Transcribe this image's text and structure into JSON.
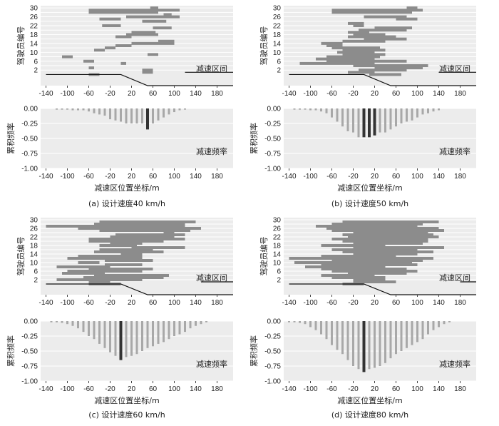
{
  "figure_labels": {
    "upper_ylabel": "驾驶员编号",
    "lower_ylabel": "累积频率",
    "lower_xlabel": "减速区位置坐标/m",
    "upper_annotation": "减速区间",
    "lower_annotation": "减速频率"
  },
  "colors": {
    "bar": "#8c8c8c",
    "freq_bar": "#a8a8a8",
    "highlight": "#333333",
    "panel_bg": "#ececec"
  },
  "chart_data": [
    {
      "id": "a",
      "caption": "(a) 设计速度40 km/h",
      "type": "bar",
      "intervals": [
        {
          "driver": 29,
          "start": -60,
          "end": 110
        },
        {
          "driver": 30,
          "start": 55,
          "end": 70
        },
        {
          "driver": 28,
          "start": -60,
          "end": 70
        },
        {
          "driver": 27,
          "start": 80,
          "end": 95
        },
        {
          "driver": 26,
          "start": 10,
          "end": 110
        },
        {
          "driver": 25,
          "start": -40,
          "end": 0
        },
        {
          "driver": 24,
          "start": 40,
          "end": 85
        },
        {
          "driver": 22,
          "start": -35,
          "end": 0
        },
        {
          "driver": 21,
          "start": 60,
          "end": 95
        },
        {
          "driver": 19,
          "start": 20,
          "end": 65
        },
        {
          "driver": 18,
          "start": 10,
          "end": 70
        },
        {
          "driver": 17,
          "start": -10,
          "end": 20
        },
        {
          "driver": 15,
          "start": 70,
          "end": 100
        },
        {
          "driver": 14,
          "start": 20,
          "end": 100
        },
        {
          "driver": 13,
          "start": -10,
          "end": 20
        },
        {
          "driver": 12,
          "start": -30,
          "end": -10
        },
        {
          "driver": 11,
          "start": -50,
          "end": -30
        },
        {
          "driver": 9,
          "start": 50,
          "end": 70
        },
        {
          "driver": 8,
          "start": -110,
          "end": -90
        },
        {
          "driver": 6,
          "start": -70,
          "end": -50
        },
        {
          "driver": 5,
          "start": 0,
          "end": 10
        },
        {
          "driver": 3,
          "start": -60,
          "end": -50
        },
        {
          "driver": 2,
          "start": 40,
          "end": 60
        },
        {
          "driver": 1,
          "start": 40,
          "end": 60
        },
        {
          "driver": 0,
          "start": -60,
          "end": -40
        }
      ],
      "road_profile": [
        [
          -140,
          0
        ],
        [
          0,
          0
        ],
        [
          50,
          -5
        ],
        [
          210,
          -5
        ]
      ],
      "road_step": {
        "x": [
          120,
          210
        ],
        "y": 1
      },
      "freq_x": [
        -120,
        -110,
        -100,
        -90,
        -80,
        -70,
        -60,
        -50,
        -40,
        -30,
        -20,
        -10,
        0,
        10,
        20,
        30,
        40,
        50,
        60,
        70,
        80,
        90,
        100,
        110,
        120
      ],
      "freq_values": [
        -0.02,
        -0.02,
        -0.02,
        -0.03,
        -0.03,
        -0.03,
        -0.05,
        -0.08,
        -0.1,
        -0.12,
        -0.18,
        -0.2,
        -0.22,
        -0.25,
        -0.25,
        -0.25,
        -0.25,
        -0.35,
        -0.25,
        -0.2,
        -0.15,
        -0.1,
        -0.06,
        -0.03,
        -0.02
      ],
      "highlight_x": 50,
      "x_ticks": [
        -140,
        -100,
        -60,
        -20,
        20,
        60,
        100,
        140,
        180
      ],
      "y_ticks_top": [
        2,
        6,
        10,
        14,
        18,
        22,
        26,
        30
      ],
      "y_ticks_bottom": [
        "0.00",
        "-0.25",
        "-0.50",
        "-0.75",
        "-1.00"
      ],
      "xlim": [
        -150,
        210
      ],
      "ylim_top": [
        -5,
        31
      ],
      "ylim_bottom": [
        -1,
        0
      ]
    },
    {
      "id": "b",
      "caption": "(b) 设计速度50 km/h",
      "type": "bar",
      "intervals": [
        {
          "driver": 30,
          "start": 80,
          "end": 100
        },
        {
          "driver": 29,
          "start": -60,
          "end": 110
        },
        {
          "driver": 28,
          "start": -60,
          "end": 90
        },
        {
          "driver": 26,
          "start": 0,
          "end": 80
        },
        {
          "driver": 25,
          "start": 60,
          "end": 100
        },
        {
          "driver": 23,
          "start": -30,
          "end": 0
        },
        {
          "driver": 22,
          "start": -20,
          "end": 0
        },
        {
          "driver": 21,
          "start": 20,
          "end": 90
        },
        {
          "driver": 20,
          "start": -10,
          "end": 80
        },
        {
          "driver": 19,
          "start": -30,
          "end": 10
        },
        {
          "driver": 18,
          "start": -20,
          "end": 40
        },
        {
          "driver": 17,
          "start": -30,
          "end": 60
        },
        {
          "driver": 16,
          "start": 0,
          "end": 80
        },
        {
          "driver": 15,
          "start": -40,
          "end": 40
        },
        {
          "driver": 14,
          "start": -80,
          "end": -40
        },
        {
          "driver": 13,
          "start": -70,
          "end": -40
        },
        {
          "driver": 12,
          "start": -60,
          "end": 30
        },
        {
          "driver": 11,
          "start": -40,
          "end": 40
        },
        {
          "driver": 10,
          "start": -50,
          "end": 20
        },
        {
          "driver": 9,
          "start": -40,
          "end": 40
        },
        {
          "driver": 8,
          "start": -70,
          "end": 30
        },
        {
          "driver": 7,
          "start": -90,
          "end": 20
        },
        {
          "driver": 6,
          "start": -70,
          "end": 80
        },
        {
          "driver": 5,
          "start": -120,
          "end": 20
        },
        {
          "driver": 4,
          "start": -20,
          "end": 120
        },
        {
          "driver": 3,
          "start": 20,
          "end": 110
        },
        {
          "driver": 2,
          "start": -10,
          "end": 80
        },
        {
          "driver": 1,
          "start": -30,
          "end": 20
        },
        {
          "driver": 0,
          "start": 10,
          "end": 70
        }
      ],
      "road_profile": [
        [
          -140,
          0
        ],
        [
          0,
          0
        ],
        [
          50,
          -5
        ],
        [
          210,
          -5
        ]
      ],
      "road_step": {
        "x": [
          140,
          210
        ],
        "y": 1
      },
      "freq_x": [
        -130,
        -120,
        -110,
        -100,
        -90,
        -80,
        -70,
        -60,
        -50,
        -40,
        -30,
        -20,
        -10,
        0,
        10,
        20,
        30,
        40,
        50,
        60,
        70,
        80,
        90,
        100,
        110,
        120,
        130,
        140
      ],
      "freq_values": [
        -0.02,
        -0.02,
        -0.02,
        -0.03,
        -0.03,
        -0.05,
        -0.08,
        -0.15,
        -0.22,
        -0.3,
        -0.38,
        -0.4,
        -0.48,
        -0.48,
        -0.48,
        -0.45,
        -0.4,
        -0.4,
        -0.35,
        -0.3,
        -0.25,
        -0.22,
        -0.2,
        -0.15,
        -0.1,
        -0.08,
        -0.05,
        -0.03
      ],
      "highlight_x": [
        0,
        10,
        20
      ],
      "x_ticks": [
        -140,
        -100,
        -60,
        -20,
        20,
        60,
        100,
        140,
        180
      ],
      "y_ticks_top": [
        2,
        6,
        10,
        14,
        18,
        22,
        26,
        30
      ],
      "y_ticks_bottom": [
        "0.00",
        "-0.25",
        "-0.50",
        "-0.75",
        "-1.00"
      ],
      "xlim": [
        -150,
        210
      ],
      "ylim_top": [
        -5,
        31
      ],
      "ylim_bottom": [
        -1,
        0
      ]
    },
    {
      "id": "c",
      "caption": "(c) 设计速度60 km/h",
      "type": "bar",
      "intervals": [
        {
          "driver": 29,
          "start": -40,
          "end": 140
        },
        {
          "driver": 28,
          "start": -50,
          "end": 120
        },
        {
          "driver": 27,
          "start": -140,
          "end": 120
        },
        {
          "driver": 26,
          "start": -80,
          "end": 150
        },
        {
          "driver": 25,
          "start": -40,
          "end": 130
        },
        {
          "driver": 24,
          "start": 80,
          "end": 100
        },
        {
          "driver": 23,
          "start": -10,
          "end": 120
        },
        {
          "driver": 22,
          "start": -20,
          "end": 100
        },
        {
          "driver": 21,
          "start": -60,
          "end": 120
        },
        {
          "driver": 20,
          "start": -60,
          "end": 80
        },
        {
          "driver": 19,
          "start": -20,
          "end": 40
        },
        {
          "driver": 18,
          "start": -40,
          "end": 30
        },
        {
          "driver": 17,
          "start": 20,
          "end": 120
        },
        {
          "driver": 16,
          "start": -40,
          "end": 60
        },
        {
          "driver": 15,
          "start": -50,
          "end": 80
        },
        {
          "driver": 14,
          "start": 0,
          "end": 40
        },
        {
          "driver": 13,
          "start": -80,
          "end": 40
        },
        {
          "driver": 12,
          "start": -100,
          "end": 40
        },
        {
          "driver": 11,
          "start": -30,
          "end": 60
        },
        {
          "driver": 10,
          "start": -80,
          "end": -40
        },
        {
          "driver": 9,
          "start": -30,
          "end": 40
        },
        {
          "driver": 8,
          "start": -120,
          "end": -20
        },
        {
          "driver": 7,
          "start": -60,
          "end": 60
        },
        {
          "driver": 6,
          "start": -100,
          "end": 40
        },
        {
          "driver": 5,
          "start": -110,
          "end": -30
        },
        {
          "driver": 4,
          "start": -50,
          "end": 90
        },
        {
          "driver": 3,
          "start": -70,
          "end": 80
        },
        {
          "driver": 2,
          "start": -120,
          "end": 40
        },
        {
          "driver": 1,
          "start": -60,
          "end": -20
        },
        {
          "driver": 0,
          "start": -60,
          "end": 0
        }
      ],
      "road_profile": [
        [
          -140,
          0
        ],
        [
          0,
          0
        ],
        [
          50,
          -5
        ],
        [
          210,
          -5
        ]
      ],
      "road_step": {
        "x": [
          150,
          210
        ],
        "y": 1
      },
      "freq_x": [
        -130,
        -120,
        -110,
        -100,
        -90,
        -80,
        -70,
        -60,
        -50,
        -40,
        -30,
        -20,
        -10,
        0,
        10,
        20,
        30,
        40,
        50,
        60,
        70,
        80,
        90,
        100,
        110,
        120,
        130,
        140,
        150,
        160
      ],
      "freq_values": [
        -0.02,
        -0.02,
        -0.03,
        -0.05,
        -0.08,
        -0.12,
        -0.18,
        -0.25,
        -0.3,
        -0.38,
        -0.45,
        -0.52,
        -0.58,
        -0.65,
        -0.6,
        -0.58,
        -0.55,
        -0.5,
        -0.45,
        -0.42,
        -0.38,
        -0.35,
        -0.3,
        -0.25,
        -0.22,
        -0.18,
        -0.12,
        -0.08,
        -0.05,
        -0.02
      ],
      "highlight_x": 0,
      "x_ticks": [
        -140,
        -100,
        -60,
        -20,
        20,
        60,
        100,
        140,
        180
      ],
      "y_ticks_top": [
        2,
        6,
        10,
        14,
        18,
        22,
        26,
        30
      ],
      "y_ticks_bottom": [
        "0.00",
        "-0.25",
        "-0.50",
        "-0.75",
        "-1.00"
      ],
      "xlim": [
        -150,
        210
      ],
      "ylim_top": [
        -5,
        31
      ],
      "ylim_bottom": [
        -1,
        0
      ]
    },
    {
      "id": "d",
      "caption": "(d) 设计速度80 km/h",
      "type": "bar",
      "intervals": [
        {
          "driver": 29,
          "start": -40,
          "end": 140
        },
        {
          "driver": 28,
          "start": -60,
          "end": 110
        },
        {
          "driver": 27,
          "start": -90,
          "end": 100
        },
        {
          "driver": 26,
          "start": -70,
          "end": 140
        },
        {
          "driver": 25,
          "start": -60,
          "end": 150
        },
        {
          "driver": 24,
          "start": -20,
          "end": 120
        },
        {
          "driver": 23,
          "start": -40,
          "end": 130
        },
        {
          "driver": 22,
          "start": -30,
          "end": 140
        },
        {
          "driver": 21,
          "start": -60,
          "end": 120
        },
        {
          "driver": 20,
          "start": -40,
          "end": 120
        },
        {
          "driver": 19,
          "start": -20,
          "end": 110
        },
        {
          "driver": 18,
          "start": -80,
          "end": 40
        },
        {
          "driver": 17,
          "start": -20,
          "end": 150
        },
        {
          "driver": 16,
          "start": -60,
          "end": 100
        },
        {
          "driver": 15,
          "start": -40,
          "end": 130
        },
        {
          "driver": 14,
          "start": -20,
          "end": 100
        },
        {
          "driver": 13,
          "start": -80,
          "end": 60
        },
        {
          "driver": 12,
          "start": -140,
          "end": 130
        },
        {
          "driver": 11,
          "start": -60,
          "end": 110
        },
        {
          "driver": 10,
          "start": -130,
          "end": 90
        },
        {
          "driver": 9,
          "start": -80,
          "end": 100
        },
        {
          "driver": 8,
          "start": -110,
          "end": 40
        },
        {
          "driver": 7,
          "start": -80,
          "end": 80
        },
        {
          "driver": 6,
          "start": -60,
          "end": 100
        },
        {
          "driver": 5,
          "start": -30,
          "end": 80
        },
        {
          "driver": 4,
          "start": -80,
          "end": 20
        },
        {
          "driver": 3,
          "start": -60,
          "end": 40
        },
        {
          "driver": 2,
          "start": -20,
          "end": 40
        },
        {
          "driver": 1,
          "start": -20,
          "end": 60
        },
        {
          "driver": 0,
          "start": -40,
          "end": 0
        }
      ],
      "road_profile": [
        [
          -140,
          0
        ],
        [
          0,
          0
        ],
        [
          50,
          -5
        ],
        [
          210,
          -5
        ]
      ],
      "road_step": {
        "x": [
          180,
          210
        ],
        "y": 1
      },
      "freq_x": [
        -140,
        -130,
        -120,
        -110,
        -100,
        -90,
        -80,
        -70,
        -60,
        -50,
        -40,
        -30,
        -20,
        -10,
        0,
        10,
        20,
        30,
        40,
        50,
        60,
        70,
        80,
        90,
        100,
        110,
        120,
        130,
        140,
        150,
        160
      ],
      "freq_values": [
        -0.02,
        -0.02,
        -0.03,
        -0.05,
        -0.1,
        -0.15,
        -0.22,
        -0.3,
        -0.4,
        -0.48,
        -0.55,
        -0.65,
        -0.75,
        -0.8,
        -0.85,
        -0.8,
        -0.78,
        -0.75,
        -0.7,
        -0.62,
        -0.55,
        -0.5,
        -0.45,
        -0.4,
        -0.35,
        -0.3,
        -0.22,
        -0.15,
        -0.1,
        -0.05,
        -0.02
      ],
      "highlight_x": 0,
      "x_ticks": [
        -140,
        -100,
        -60,
        -20,
        20,
        60,
        100,
        140,
        180
      ],
      "y_ticks_top": [
        2,
        6,
        10,
        14,
        18,
        22,
        26,
        30
      ],
      "y_ticks_bottom": [
        "0.00",
        "-0.25",
        "-0.50",
        "-0.75",
        "-1.00"
      ],
      "xlim": [
        -150,
        210
      ],
      "ylim_top": [
        -5,
        31
      ],
      "ylim_bottom": [
        -1,
        0
      ]
    }
  ]
}
